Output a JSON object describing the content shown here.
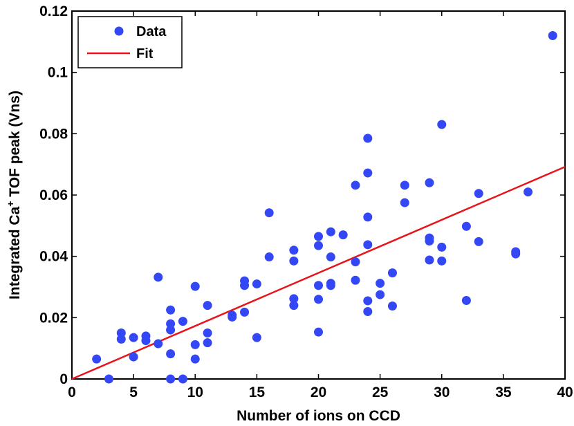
{
  "chart_data": {
    "type": "scatter",
    "title": "",
    "xlabel": "Number of ions on CCD",
    "ylabel_parts": [
      "Integrated Ca",
      "+",
      " TOF peak (Vns)"
    ],
    "xlim": [
      0,
      40
    ],
    "ylim": [
      0,
      0.12
    ],
    "x_ticks": [
      0,
      5,
      10,
      15,
      20,
      25,
      30,
      35,
      40
    ],
    "x_tick_labels": [
      "0",
      "5",
      "10",
      "15",
      "20",
      "25",
      "30",
      "35",
      "40"
    ],
    "y_ticks": [
      0,
      0.02,
      0.04,
      0.06,
      0.08,
      0.1,
      0.12
    ],
    "y_tick_labels": [
      "0",
      "0.02",
      "0.04",
      "0.06",
      "0.08",
      "0.1",
      "0.12"
    ],
    "grid": false,
    "legend": {
      "position": "top-left",
      "entries": [
        {
          "label": "Data",
          "marker": "circle"
        },
        {
          "label": "Fit",
          "marker": "line"
        }
      ]
    },
    "series": [
      {
        "name": "Data",
        "type": "scatter",
        "color": "#3347f5",
        "points": [
          [
            2,
            0.0065
          ],
          [
            3,
            0.0
          ],
          [
            4,
            0.015
          ],
          [
            4,
            0.013
          ],
          [
            5,
            0.0135
          ],
          [
            5,
            0.0072
          ],
          [
            6,
            0.014
          ],
          [
            6,
            0.0125
          ],
          [
            7,
            0.0115
          ],
          [
            7,
            0.0332
          ],
          [
            8,
            0.0225
          ],
          [
            8,
            0.018
          ],
          [
            8,
            0.016
          ],
          [
            8,
            0.0082
          ],
          [
            8,
            0.0
          ],
          [
            9,
            0.0188
          ],
          [
            9,
            0.0
          ],
          [
            10,
            0.0302
          ],
          [
            10,
            0.0112
          ],
          [
            10,
            0.0065
          ],
          [
            11,
            0.024
          ],
          [
            11,
            0.015
          ],
          [
            11,
            0.0118
          ],
          [
            13,
            0.0208
          ],
          [
            13,
            0.0202
          ],
          [
            14,
            0.032
          ],
          [
            14,
            0.0305
          ],
          [
            14,
            0.0218
          ],
          [
            15,
            0.031
          ],
          [
            15,
            0.0135
          ],
          [
            16,
            0.0542
          ],
          [
            16,
            0.0398
          ],
          [
            18,
            0.042
          ],
          [
            18,
            0.0385
          ],
          [
            18,
            0.0262
          ],
          [
            18,
            0.024
          ],
          [
            20,
            0.0465
          ],
          [
            20,
            0.0435
          ],
          [
            20,
            0.0305
          ],
          [
            20,
            0.026
          ],
          [
            20,
            0.0153
          ],
          [
            21,
            0.048
          ],
          [
            21,
            0.0398
          ],
          [
            21,
            0.0312
          ],
          [
            21,
            0.0305
          ],
          [
            22,
            0.047
          ],
          [
            23,
            0.0632
          ],
          [
            23,
            0.0382
          ],
          [
            23,
            0.0322
          ],
          [
            24,
            0.0785
          ],
          [
            24,
            0.0672
          ],
          [
            24,
            0.0528
          ],
          [
            24,
            0.0438
          ],
          [
            24,
            0.0255
          ],
          [
            24,
            0.022
          ],
          [
            25,
            0.0312
          ],
          [
            25,
            0.0275
          ],
          [
            26,
            0.0346
          ],
          [
            26,
            0.0238
          ],
          [
            27,
            0.0632
          ],
          [
            27,
            0.0575
          ],
          [
            29,
            0.064
          ],
          [
            29,
            0.046
          ],
          [
            29,
            0.045
          ],
          [
            29,
            0.0388
          ],
          [
            30,
            0.083
          ],
          [
            30,
            0.043
          ],
          [
            30,
            0.0385
          ],
          [
            32,
            0.0498
          ],
          [
            32,
            0.0256
          ],
          [
            33,
            0.0605
          ],
          [
            33,
            0.0448
          ],
          [
            36,
            0.0415
          ],
          [
            36,
            0.0408
          ],
          [
            37,
            0.061
          ],
          [
            39,
            0.112
          ]
        ]
      },
      {
        "name": "Fit",
        "type": "line",
        "color": "#e8141b",
        "points": [
          [
            0,
            0.0
          ],
          [
            40,
            0.0692
          ]
        ]
      }
    ]
  }
}
